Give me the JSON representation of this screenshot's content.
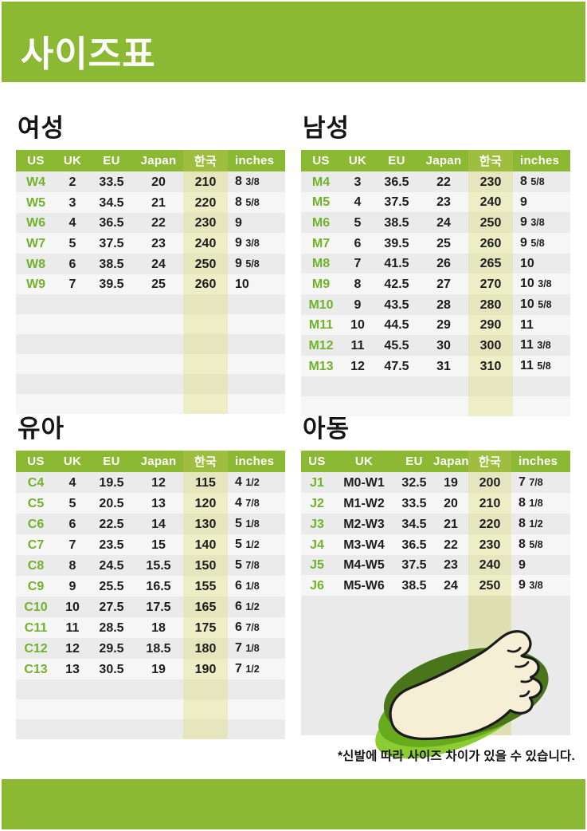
{
  "header": {
    "title": "사이즈표"
  },
  "colors": {
    "accent_green": "#8cb933",
    "us_size_green": "#71b22b",
    "korea_highlight_band": "#e5e5be",
    "row_stripe_dark": "#ebebeb",
    "row_stripe_light": "#f6f6f6"
  },
  "tables": [
    {
      "id": "women",
      "title": "여성",
      "columns": [
        "US",
        "UK",
        "EU",
        "Japan",
        "한국",
        "inches"
      ],
      "rows": [
        [
          "W4",
          "2",
          "33.5",
          "20",
          "210",
          "8 3/8"
        ],
        [
          "W5",
          "3",
          "34.5",
          "21",
          "220",
          "8 5/8"
        ],
        [
          "W6",
          "4",
          "36.5",
          "22",
          "230",
          "9"
        ],
        [
          "W7",
          "5",
          "37.5",
          "23",
          "240",
          "9 3/8"
        ],
        [
          "W8",
          "6",
          "38.5",
          "24",
          "250",
          "9 5/8"
        ],
        [
          "W9",
          "7",
          "39.5",
          "25",
          "260",
          "10"
        ]
      ],
      "empty_rows": 6
    },
    {
      "id": "men",
      "title": "남성",
      "columns": [
        "US",
        "UK",
        "EU",
        "Japan",
        "한국",
        "inches"
      ],
      "rows": [
        [
          "M4",
          "3",
          "36.5",
          "22",
          "230",
          "8 5/8"
        ],
        [
          "M5",
          "4",
          "37.5",
          "23",
          "240",
          "9"
        ],
        [
          "M6",
          "5",
          "38.5",
          "24",
          "250",
          "9 3/8"
        ],
        [
          "M7",
          "6",
          "39.5",
          "25",
          "260",
          "9 5/8"
        ],
        [
          "M8",
          "7",
          "41.5",
          "26",
          "265",
          "10"
        ],
        [
          "M9",
          "8",
          "42.5",
          "27",
          "270",
          "10 3/8"
        ],
        [
          "M10",
          "9",
          "43.5",
          "28",
          "280",
          "10 5/8"
        ],
        [
          "M11",
          "10",
          "44.5",
          "29",
          "290",
          "11"
        ],
        [
          "M12",
          "11",
          "45.5",
          "30",
          "300",
          "11 3/8"
        ],
        [
          "M13",
          "12",
          "47.5",
          "31",
          "310",
          "11 5/8"
        ]
      ],
      "empty_rows": 2
    },
    {
      "id": "toddler",
      "title": "유아",
      "columns": [
        "US",
        "UK",
        "EU",
        "Japan",
        "한국",
        "inches"
      ],
      "rows": [
        [
          "C4",
          "4",
          "19.5",
          "12",
          "115",
          "4 1/2"
        ],
        [
          "C5",
          "5",
          "20.5",
          "13",
          "120",
          "4 7/8"
        ],
        [
          "C6",
          "6",
          "22.5",
          "14",
          "130",
          "5 1/8"
        ],
        [
          "C7",
          "7",
          "23.5",
          "15",
          "140",
          "5 1/2"
        ],
        [
          "C8",
          "8",
          "24.5",
          "15.5",
          "150",
          "5 7/8"
        ],
        [
          "C9",
          "9",
          "25.5",
          "16.5",
          "155",
          "6 1/8"
        ],
        [
          "C10",
          "10",
          "27.5",
          "17.5",
          "165",
          "6 1/2"
        ],
        [
          "C11",
          "11",
          "28.5",
          "18",
          "175",
          "6 7/8"
        ],
        [
          "C12",
          "12",
          "29.5",
          "18.5",
          "180",
          "7 1/8"
        ],
        [
          "C13",
          "13",
          "30.5",
          "19",
          "190",
          "7 1/2"
        ]
      ],
      "empty_rows": 3
    },
    {
      "id": "junior",
      "title": "아동",
      "columns": [
        "US",
        "UK",
        "EU",
        "Japan",
        "한국",
        "inches"
      ],
      "rows": [
        [
          "J1",
          "M0-W1",
          "32.5",
          "19",
          "200",
          "7 7/8"
        ],
        [
          "J2",
          "M1-W2",
          "33.5",
          "20",
          "210",
          "8 1/8"
        ],
        [
          "J3",
          "M2-W3",
          "34.5",
          "21",
          "220",
          "8 1/2"
        ],
        [
          "J4",
          "M3-W4",
          "36.5",
          "22",
          "230",
          "8 5/8"
        ],
        [
          "J5",
          "M4-W5",
          "37.5",
          "23",
          "240",
          "9"
        ],
        [
          "J6",
          "M5-W6",
          "38.5",
          "24",
          "250",
          "9 3/8"
        ]
      ],
      "empty_rows": 0
    }
  ],
  "foot_illustration": "foot-on-shoe-soles",
  "footnote": "*신발에 따라 사이즈 차이가 있을 수 있습니다."
}
